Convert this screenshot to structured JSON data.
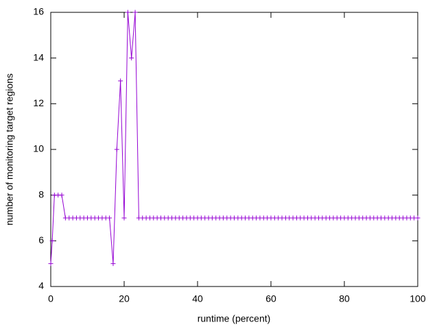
{
  "chart_data": {
    "type": "line",
    "xlabel": "runtime (percent)",
    "ylabel": "number of monitoring target regions",
    "x": [
      0,
      0.4,
      1,
      2,
      3,
      4,
      5,
      6,
      7,
      8,
      9,
      10,
      11,
      12,
      13,
      14,
      15,
      16,
      17,
      18,
      19,
      20,
      21,
      22,
      23,
      24,
      25,
      26,
      27,
      28,
      29,
      30,
      31,
      32,
      33,
      34,
      35,
      36,
      37,
      38,
      39,
      40,
      41,
      42,
      43,
      44,
      45,
      46,
      47,
      48,
      49,
      50,
      51,
      52,
      53,
      54,
      55,
      56,
      57,
      58,
      59,
      60,
      61,
      62,
      63,
      64,
      65,
      66,
      67,
      68,
      69,
      70,
      71,
      72,
      73,
      74,
      75,
      76,
      77,
      78,
      79,
      80,
      81,
      82,
      83,
      84,
      85,
      86,
      87,
      88,
      89,
      90,
      91,
      92,
      93,
      94,
      95,
      96,
      97,
      98,
      99,
      100
    ],
    "series": [
      {
        "color": "#9400d3",
        "values": [
          5,
          6,
          8,
          8,
          8,
          7,
          7,
          7,
          7,
          7,
          7,
          7,
          7,
          7,
          7,
          7,
          7,
          7,
          5,
          10,
          13,
          7,
          16,
          14,
          16,
          7,
          7,
          7,
          7,
          7,
          7,
          7,
          7,
          7,
          7,
          7,
          7,
          7,
          7,
          7,
          7,
          7,
          7,
          7,
          7,
          7,
          7,
          7,
          7,
          7,
          7,
          7,
          7,
          7,
          7,
          7,
          7,
          7,
          7,
          7,
          7,
          7,
          7,
          7,
          7,
          7,
          7,
          7,
          7,
          7,
          7,
          7,
          7,
          7,
          7,
          7,
          7,
          7,
          7,
          7,
          7,
          7,
          7,
          7,
          7,
          7,
          7,
          7,
          7,
          7,
          7,
          7,
          7,
          7,
          7,
          7,
          7,
          7,
          7,
          7,
          7,
          7
        ]
      }
    ],
    "xlim": [
      0,
      100
    ],
    "xticks": [
      0,
      20,
      40,
      60,
      80,
      100
    ],
    "ylim": [
      4,
      16
    ],
    "yticks": [
      4,
      6,
      8,
      10,
      12,
      14,
      16
    ]
  }
}
